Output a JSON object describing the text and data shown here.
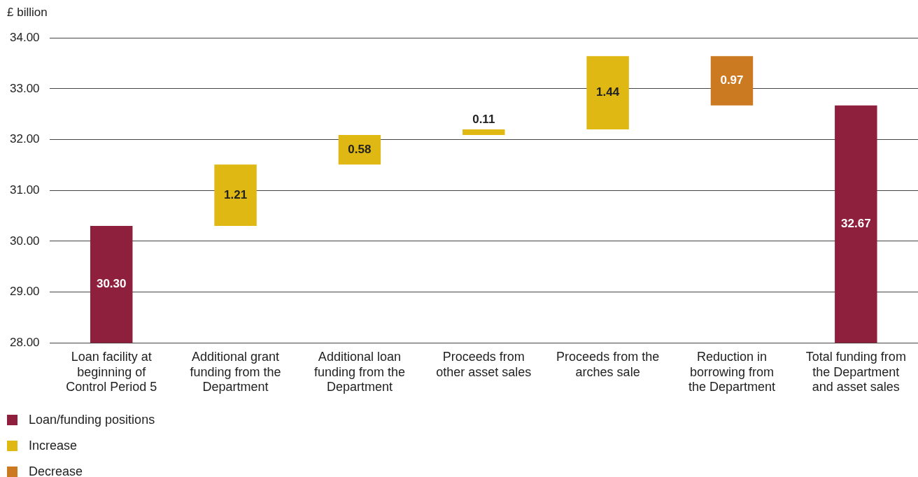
{
  "chart_data": {
    "type": "bar",
    "ylabel": "£ billion",
    "categories": [
      "Loan facility at beginning of Control Period 5",
      "Additional grant funding from the Department",
      "Additional loan funding from the Department",
      "Proceeds from other asset sales",
      "Proceeds from the arches sale",
      "Reduction in borrowing from the Department",
      "Total funding from the Department and asset sales"
    ],
    "series": [
      {
        "name": "Loan/funding positions",
        "color": "#8e1f3d",
        "values": [
          30.3,
          null,
          null,
          null,
          null,
          null,
          32.67
        ],
        "value_labels": [
          "30.30",
          null,
          null,
          null,
          null,
          null,
          "32.67"
        ]
      },
      {
        "name": "Increase",
        "color": "#e0b814",
        "values": [
          null,
          1.21,
          0.58,
          0.11,
          1.44,
          null,
          null
        ],
        "base": [
          null,
          30.3,
          31.51,
          32.09,
          32.2,
          null,
          null
        ],
        "value_labels": [
          null,
          "1.21",
          "0.58",
          "0.11",
          "1.44",
          null,
          null
        ]
      },
      {
        "name": "Decrease",
        "color": "#cc7a22",
        "values": [
          null,
          null,
          null,
          null,
          null,
          -0.97,
          null
        ],
        "base": [
          null,
          null,
          null,
          null,
          null,
          33.64,
          null
        ],
        "value_labels": [
          null,
          null,
          null,
          null,
          null,
          "0.97",
          null
        ]
      }
    ],
    "ylim": [
      28,
      34
    ],
    "yticks": [
      {
        "value": 28,
        "label": "28.00"
      },
      {
        "value": 29,
        "label": "29.00"
      },
      {
        "value": 30,
        "label": "30.00"
      },
      {
        "value": 31,
        "label": "31.00"
      },
      {
        "value": 32,
        "label": "32.00"
      },
      {
        "value": 33,
        "label": "33.00"
      },
      {
        "value": 34,
        "label": "34.00"
      }
    ],
    "grid": "y",
    "legend": "bottom left"
  }
}
